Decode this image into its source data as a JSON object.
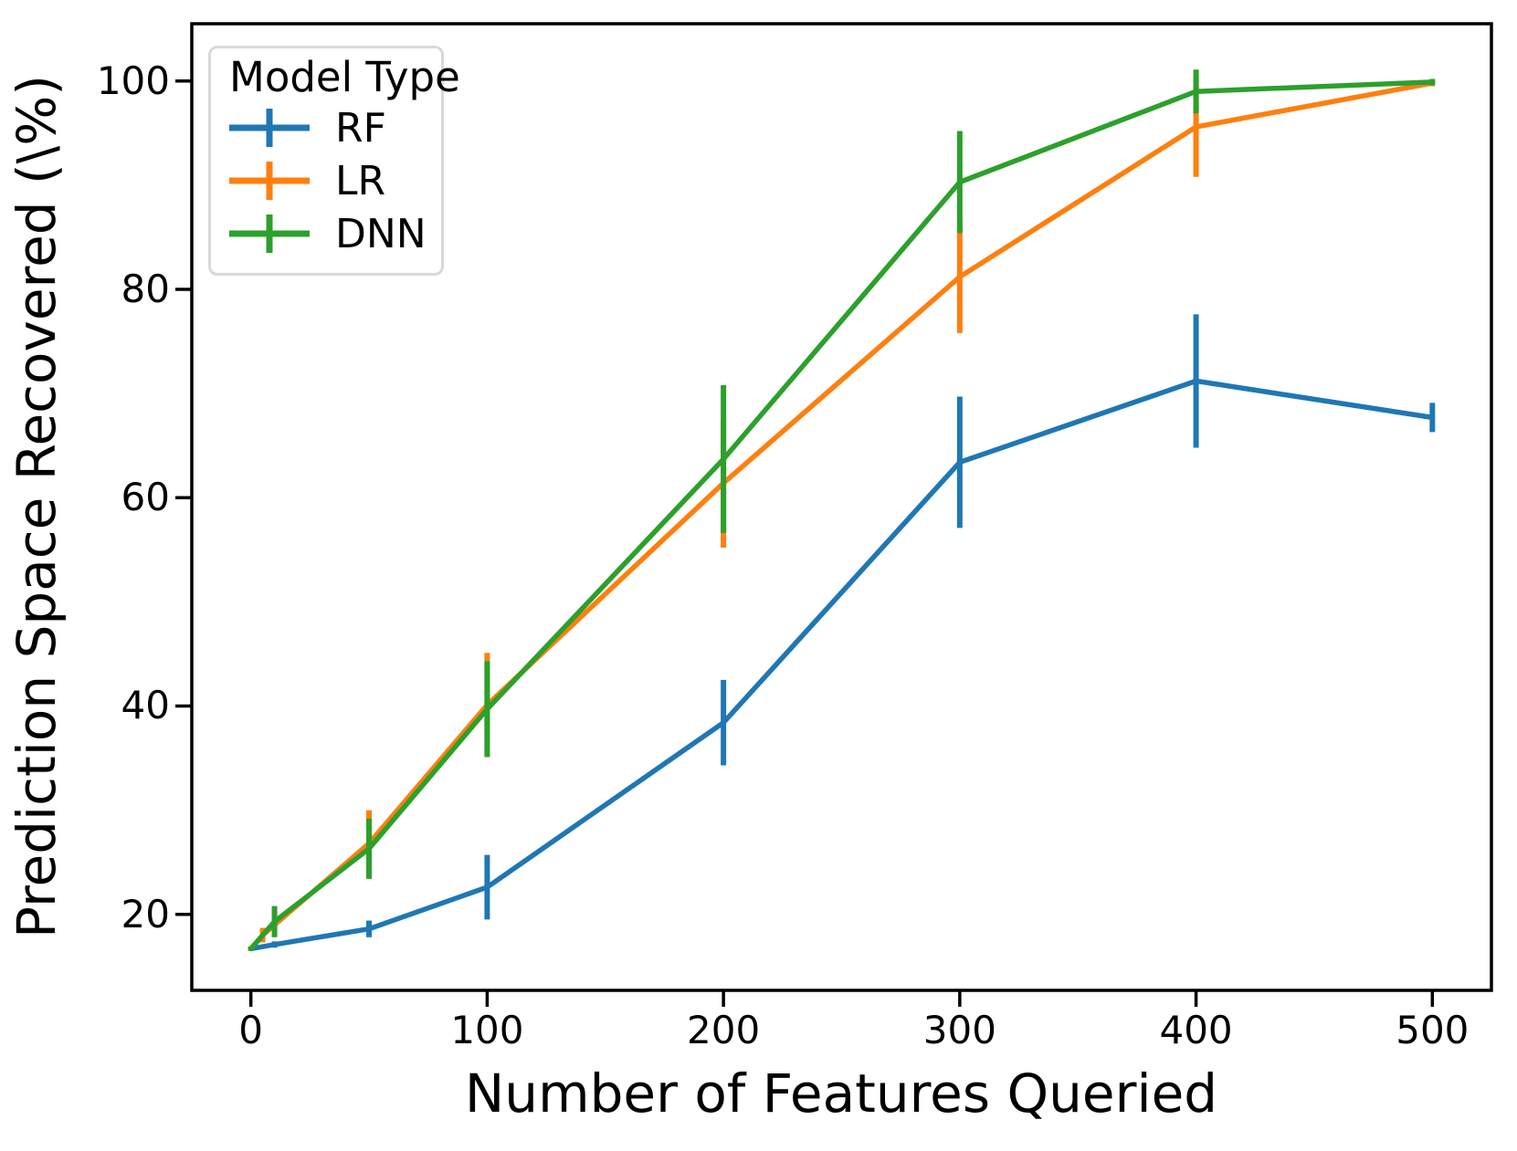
{
  "chart_data": {
    "type": "line",
    "title": "",
    "xlabel": "Number of Features Queried",
    "ylabel": "Prediction Space Recovered (\\%)",
    "xlim": [
      -25,
      525
    ],
    "ylim": [
      12.7,
      105.5
    ],
    "x_ticks": [
      0,
      100,
      200,
      300,
      400,
      500
    ],
    "y_ticks": [
      20,
      40,
      60,
      80,
      100
    ],
    "grid": false,
    "frame_color": "#000000",
    "legend": {
      "title": "Model Type",
      "position": "upper-left",
      "entries": [
        "RF",
        "LR",
        "DNN"
      ]
    },
    "series": [
      {
        "name": "RF",
        "color": "#1f77b4",
        "x": [
          0,
          10,
          50,
          100,
          200,
          300,
          400,
          500
        ],
        "y": [
          16.7,
          17.1,
          18.6,
          22.6,
          38.4,
          63.4,
          71.2,
          67.7
        ],
        "yerr": [
          0.2,
          0.3,
          0.8,
          3.1,
          4.1,
          6.3,
          6.4,
          1.4
        ]
      },
      {
        "name": "LR",
        "color": "#ff7f0e",
        "x": [
          0,
          5,
          50,
          100,
          200,
          300,
          400,
          500
        ],
        "y": [
          16.7,
          18.0,
          26.8,
          40.1,
          61.4,
          81.2,
          95.6,
          99.8
        ],
        "yerr": [
          0.2,
          0.7,
          3.2,
          5.0,
          6.2,
          5.4,
          4.8,
          0.3
        ]
      },
      {
        "name": "DNN",
        "color": "#2ca02c",
        "x": [
          0,
          10,
          50,
          100,
          200,
          300,
          400,
          500
        ],
        "y": [
          16.7,
          19.3,
          26.3,
          39.7,
          63.7,
          90.3,
          99.0,
          99.9
        ],
        "yerr": [
          0.2,
          1.5,
          2.9,
          4.6,
          7.1,
          4.9,
          2.1,
          0.3
        ]
      }
    ]
  }
}
